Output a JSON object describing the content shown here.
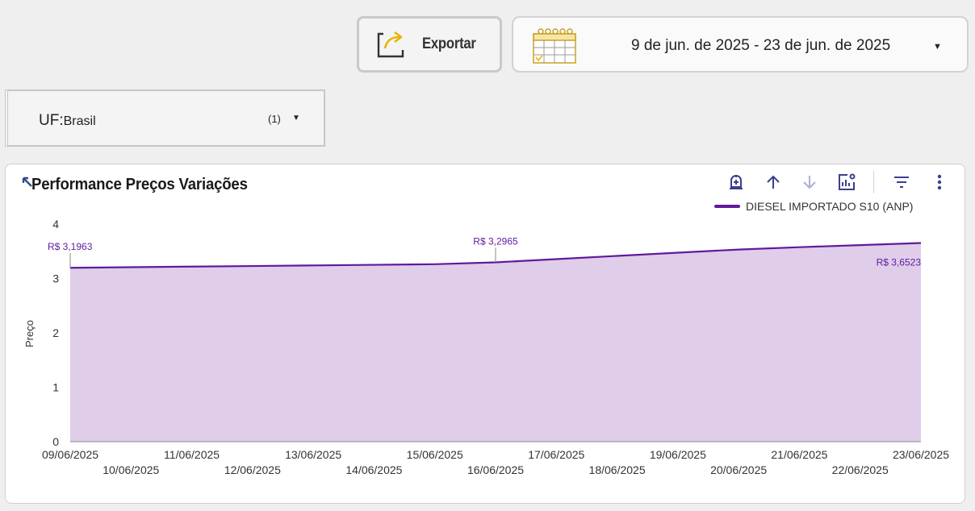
{
  "toolbar": {
    "export_label": "Exportar",
    "date_range": "9 de jun. de 2025 - 23 de jun. de 2025"
  },
  "filter": {
    "key": "UF",
    "value": "Brasil",
    "count": "(1)"
  },
  "card": {
    "title": "Performance Preços Variações",
    "icons": [
      "drill-up-icon",
      "sort-ascending-icon",
      "sort-descending-icon",
      "chart-settings-icon",
      "filter-icon",
      "more-options-icon"
    ]
  },
  "colors": {
    "line": "#5f1a9c",
    "area": "#dfcdea",
    "accent_icon": "#3b3f8f"
  },
  "chart_data": {
    "type": "area",
    "x": [
      "09/06/2025",
      "10/06/2025",
      "11/06/2025",
      "12/06/2025",
      "13/06/2025",
      "14/06/2025",
      "15/06/2025",
      "16/06/2025",
      "17/06/2025",
      "18/06/2025",
      "19/06/2025",
      "20/06/2025",
      "21/06/2025",
      "22/06/2025",
      "23/06/2025"
    ],
    "series": [
      {
        "name": "DIESEL IMPORTADO S10 (ANP)",
        "values": [
          3.1963,
          3.207,
          3.218,
          3.229,
          3.24,
          3.251,
          3.262,
          3.2965,
          3.356,
          3.415,
          3.474,
          3.532,
          3.575,
          3.613,
          3.6523
        ]
      }
    ],
    "annotations": [
      {
        "x": "09/06/2025",
        "label": "R$ 3,1963"
      },
      {
        "x": "16/06/2025",
        "label": "R$ 3,2965"
      },
      {
        "x": "23/06/2025",
        "label": "R$ 3,6523"
      }
    ],
    "ylabel": "Preço",
    "yticks": [
      "0",
      "1",
      "2",
      "3",
      "4"
    ],
    "ylim": [
      0,
      4
    ],
    "legend": "top-right",
    "grid": false
  }
}
